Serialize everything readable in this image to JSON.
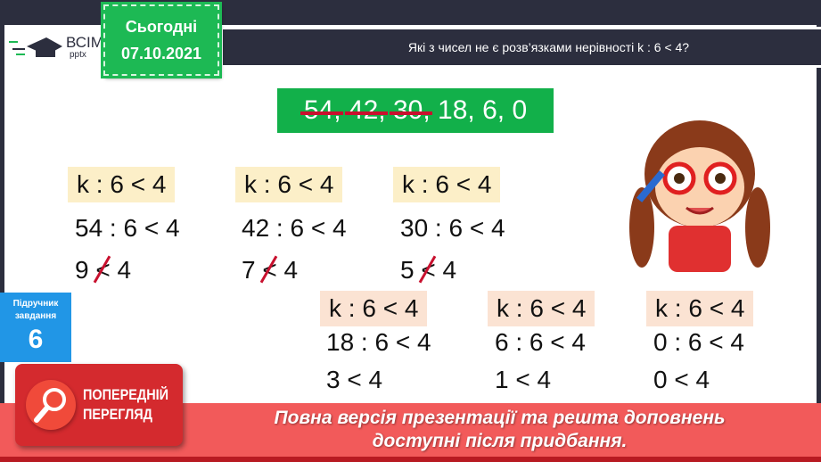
{
  "logo": {
    "brand": "ВСІМ",
    "sub": "pptx"
  },
  "date_badge": {
    "label": "Сьогодні",
    "date": "07.10.2021"
  },
  "header": {
    "question": "Які з  чисел не є розв’язками нерівності  k : 6 < 4?"
  },
  "numbers": {
    "struck": [
      "54,",
      "42,",
      "30,"
    ],
    "rest": "18, 6, 0"
  },
  "inequality": "k : 6 < 4",
  "rows": [
    {
      "sub": "54 : 6 < 4",
      "result_left": "9",
      "result_right": "4",
      "false": true
    },
    {
      "sub": "42 : 6 < 4",
      "result_left": "7",
      "result_right": "4",
      "false": true
    },
    {
      "sub": "30 : 6 < 4",
      "result_left": "5",
      "result_right": "4",
      "false": true
    },
    {
      "sub": "18 : 6 < 4",
      "result": "3 < 4"
    },
    {
      "sub": "6 : 6 < 4",
      "result": "1 < 4"
    },
    {
      "sub": "0 : 6 < 4",
      "result": "0 < 4"
    }
  ],
  "task_badge": {
    "line1": "Підручник",
    "line2": "завдання",
    "number": "6"
  },
  "preview": {
    "line1": "ПОПЕРЕДНІЙ",
    "line2": "ПЕРЕГЛЯД"
  },
  "banner": {
    "line1": "Повна версія презентації та решта доповнень",
    "line2": "доступні після придбання."
  },
  "colors": {
    "green": "#12b04a",
    "dark": "#2c2e3e",
    "red": "#f25a5a",
    "blue": "#2196e6",
    "strike": "#c8102e"
  }
}
